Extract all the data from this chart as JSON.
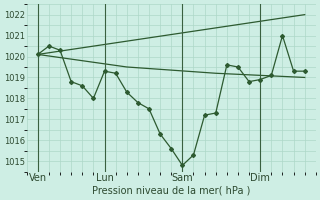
{
  "xlabel": "Pression niveau de la mer( hPa )",
  "bg_color": "#ceeee4",
  "grid_color": "#aed8c8",
  "line_color": "#2d5a30",
  "ylim": [
    1014.5,
    1022.5
  ],
  "yticks": [
    1015,
    1016,
    1017,
    1018,
    1019,
    1020,
    1021,
    1022
  ],
  "day_labels": [
    "Ven",
    "Lun",
    "Sam",
    "Dim"
  ],
  "day_positions": [
    0.5,
    3.5,
    7.0,
    10.5
  ],
  "vline_positions": [
    0.5,
    3.5,
    7.0,
    10.5
  ],
  "xlim": [
    0,
    13
  ],
  "series_main_x": [
    0.5,
    1.0,
    1.5,
    2.0,
    2.5,
    3.0,
    3.5,
    4.0,
    4.5,
    5.0,
    5.5,
    6.0,
    6.5,
    7.0,
    7.5,
    8.0,
    8.5,
    9.0,
    9.5,
    10.0,
    10.5,
    11.0,
    11.5,
    12.0,
    12.5
  ],
  "series_main_y": [
    1020.1,
    1020.5,
    1020.3,
    1018.8,
    1018.6,
    1018.0,
    1019.3,
    1019.2,
    1018.3,
    1017.8,
    1017.5,
    1016.3,
    1015.6,
    1014.8,
    1015.3,
    1017.2,
    1017.3,
    1019.6,
    1019.5,
    1018.8,
    1018.9,
    1019.1,
    1021.0,
    1019.3,
    1019.3
  ],
  "series_smooth_x": [
    0.5,
    2.5,
    4.5,
    6.5,
    8.5,
    10.5,
    12.5
  ],
  "series_smooth_y": [
    1020.1,
    1019.8,
    1019.5,
    1019.35,
    1019.2,
    1019.1,
    1019.0
  ],
  "series_trend_x": [
    0.5,
    12.5
  ],
  "series_trend_y": [
    1020.1,
    1022.0
  ]
}
